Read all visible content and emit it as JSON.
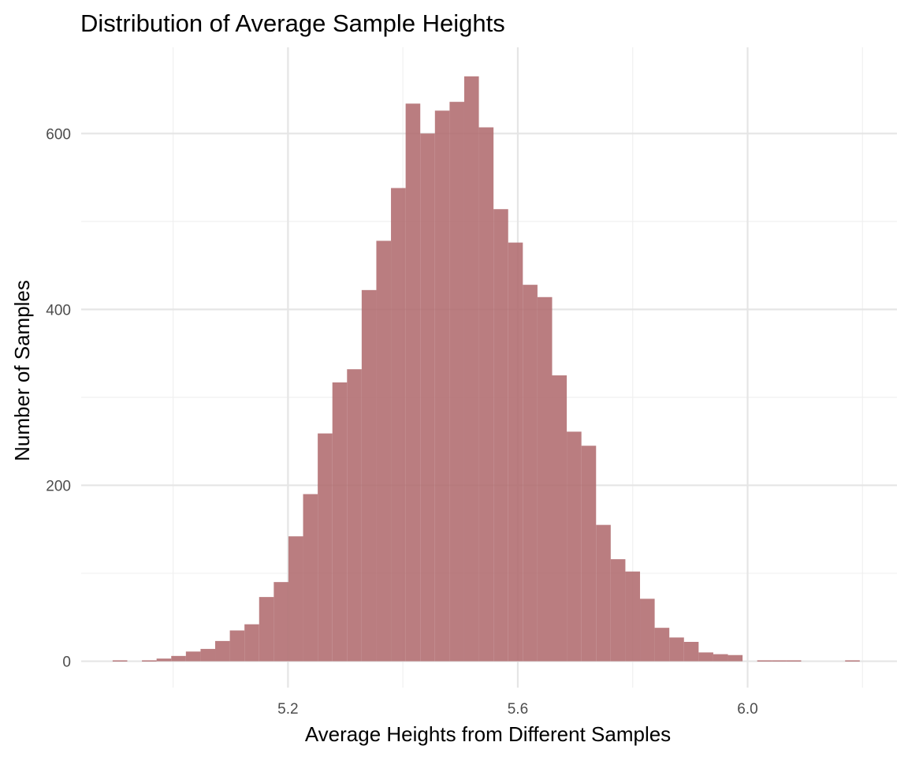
{
  "chart_data": {
    "type": "bar",
    "title": "Distribution of Average Sample Heights",
    "xlabel": "Average Heights from Different Samples",
    "ylabel": "Number of Samples",
    "x_ticks": [
      5.2,
      5.6,
      6.0
    ],
    "x_tick_labels": [
      "5.2",
      "5.6",
      "6.0"
    ],
    "x_minor_ticks": [
      5.0,
      5.4,
      5.8,
      6.2
    ],
    "y_ticks": [
      0,
      200,
      400,
      600
    ],
    "y_tick_labels": [
      "0",
      "200",
      "400",
      "600"
    ],
    "y_minor_ticks": [
      100,
      300,
      500
    ],
    "xlim": [
      4.84,
      6.26
    ],
    "ylim": [
      -30,
      698
    ],
    "bin_width": 0.0255,
    "bin_centers": [
      4.9075,
      4.933,
      4.9585,
      4.984,
      5.0095,
      5.035,
      5.0605,
      5.086,
      5.1115,
      5.137,
      5.1625,
      5.188,
      5.2135,
      5.239,
      5.2645,
      5.29,
      5.3155,
      5.341,
      5.3665,
      5.392,
      5.4175,
      5.443,
      5.4685,
      5.494,
      5.5195,
      5.545,
      5.5705,
      5.596,
      5.6215,
      5.647,
      5.6725,
      5.698,
      5.7235,
      5.749,
      5.7745,
      5.8,
      5.8255,
      5.851,
      5.8765,
      5.902,
      5.9275,
      5.953,
      5.9785,
      6.004,
      6.0295,
      6.055,
      6.0805,
      6.106,
      6.1315,
      6.157,
      6.1825
    ],
    "values": [
      1,
      0,
      1,
      3,
      6,
      11,
      14,
      23,
      35,
      42,
      73,
      90,
      142,
      190,
      259,
      317,
      332,
      422,
      478,
      538,
      634,
      600,
      626,
      636,
      665,
      607,
      514,
      476,
      428,
      414,
      325,
      261,
      245,
      155,
      116,
      102,
      71,
      38,
      27,
      22,
      10,
      8,
      7,
      0,
      1,
      1,
      1,
      0,
      0,
      0,
      1
    ],
    "bar_color": "#b06b6e",
    "bar_opacity": 0.88,
    "grid": true,
    "background": "#ffffff"
  }
}
